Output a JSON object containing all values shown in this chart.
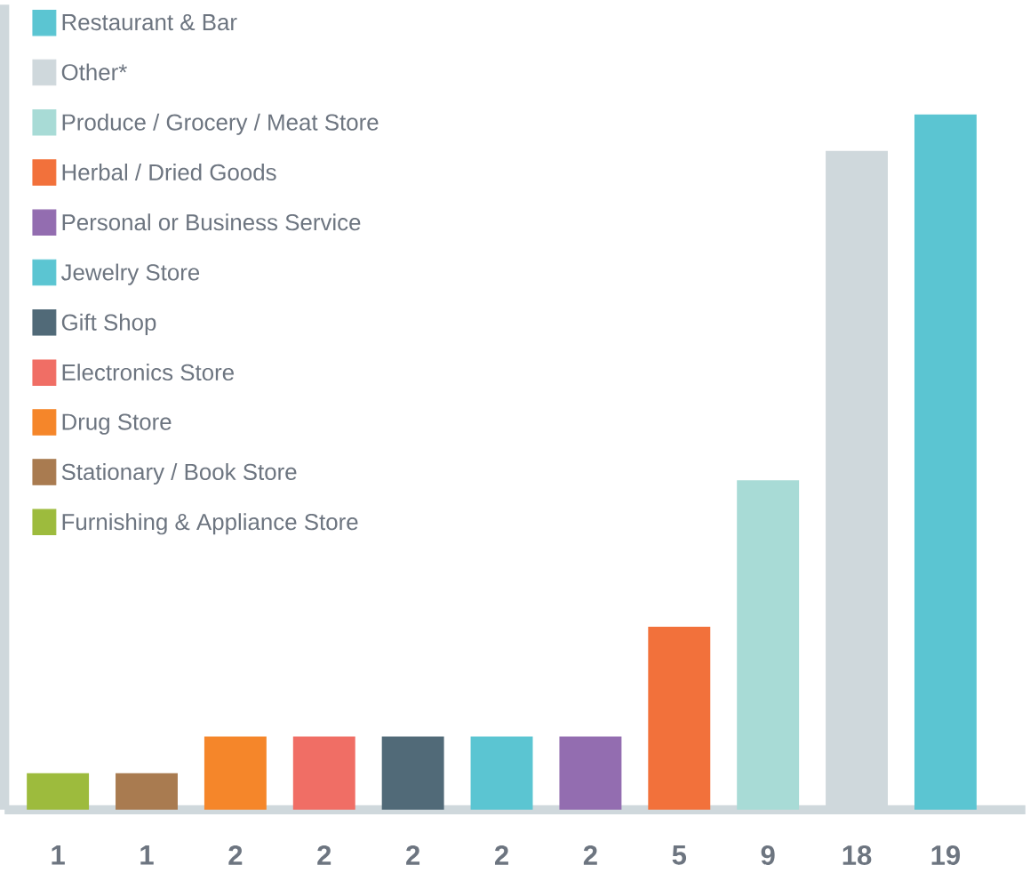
{
  "chart_data": {
    "type": "bar",
    "categories": [
      null,
      null,
      null,
      null,
      null,
      null,
      null,
      null,
      null,
      null,
      null
    ],
    "series": [
      {
        "name": "Furnishing & Appliance Store",
        "color": "#9dbb3d",
        "values": [
          1,
          null,
          null,
          null,
          null,
          null,
          null,
          null,
          null,
          null,
          null
        ]
      },
      {
        "name": "Stationary / Book Store",
        "color": "#a97b50",
        "values": [
          null,
          1,
          null,
          null,
          null,
          null,
          null,
          null,
          null,
          null,
          null
        ]
      },
      {
        "name": "Drug Store",
        "color": "#f5862a",
        "values": [
          null,
          null,
          2,
          null,
          null,
          null,
          null,
          null,
          null,
          null,
          null
        ]
      },
      {
        "name": "Electronics Store",
        "color": "#f06e65",
        "values": [
          null,
          null,
          null,
          2,
          null,
          null,
          null,
          null,
          null,
          null,
          null
        ]
      },
      {
        "name": "Gift Shop",
        "color": "#516a78",
        "values": [
          null,
          null,
          null,
          null,
          2,
          null,
          null,
          null,
          null,
          null,
          null
        ]
      },
      {
        "name": "Jewelry Store",
        "color": "#5bc5d2",
        "values": [
          null,
          null,
          null,
          null,
          null,
          2,
          null,
          null,
          null,
          null,
          null
        ]
      },
      {
        "name": "Personal or Business Service",
        "color": "#936db0",
        "values": [
          null,
          null,
          null,
          null,
          null,
          null,
          2,
          null,
          null,
          null,
          null
        ]
      },
      {
        "name": "Herbal / Dried Goods",
        "color": "#f2713b",
        "values": [
          null,
          null,
          null,
          null,
          null,
          null,
          null,
          5,
          null,
          null,
          null
        ]
      },
      {
        "name": "Produce / Grocery / Meat Store",
        "color": "#a8dbd6",
        "values": [
          null,
          null,
          null,
          null,
          null,
          null,
          null,
          null,
          9,
          null,
          null
        ]
      },
      {
        "name": "Other*",
        "color": "#cfd8dc",
        "values": [
          null,
          null,
          null,
          null,
          null,
          null,
          null,
          null,
          null,
          18,
          null
        ]
      },
      {
        "name": "Restaurant & Bar",
        "color": "#5bc5d2",
        "values": [
          null,
          null,
          null,
          null,
          null,
          null,
          null,
          null,
          null,
          null,
          19
        ]
      }
    ],
    "stacked": true,
    "ylim": [
      0,
      22
    ],
    "data_labels": true,
    "legend": "top left"
  }
}
